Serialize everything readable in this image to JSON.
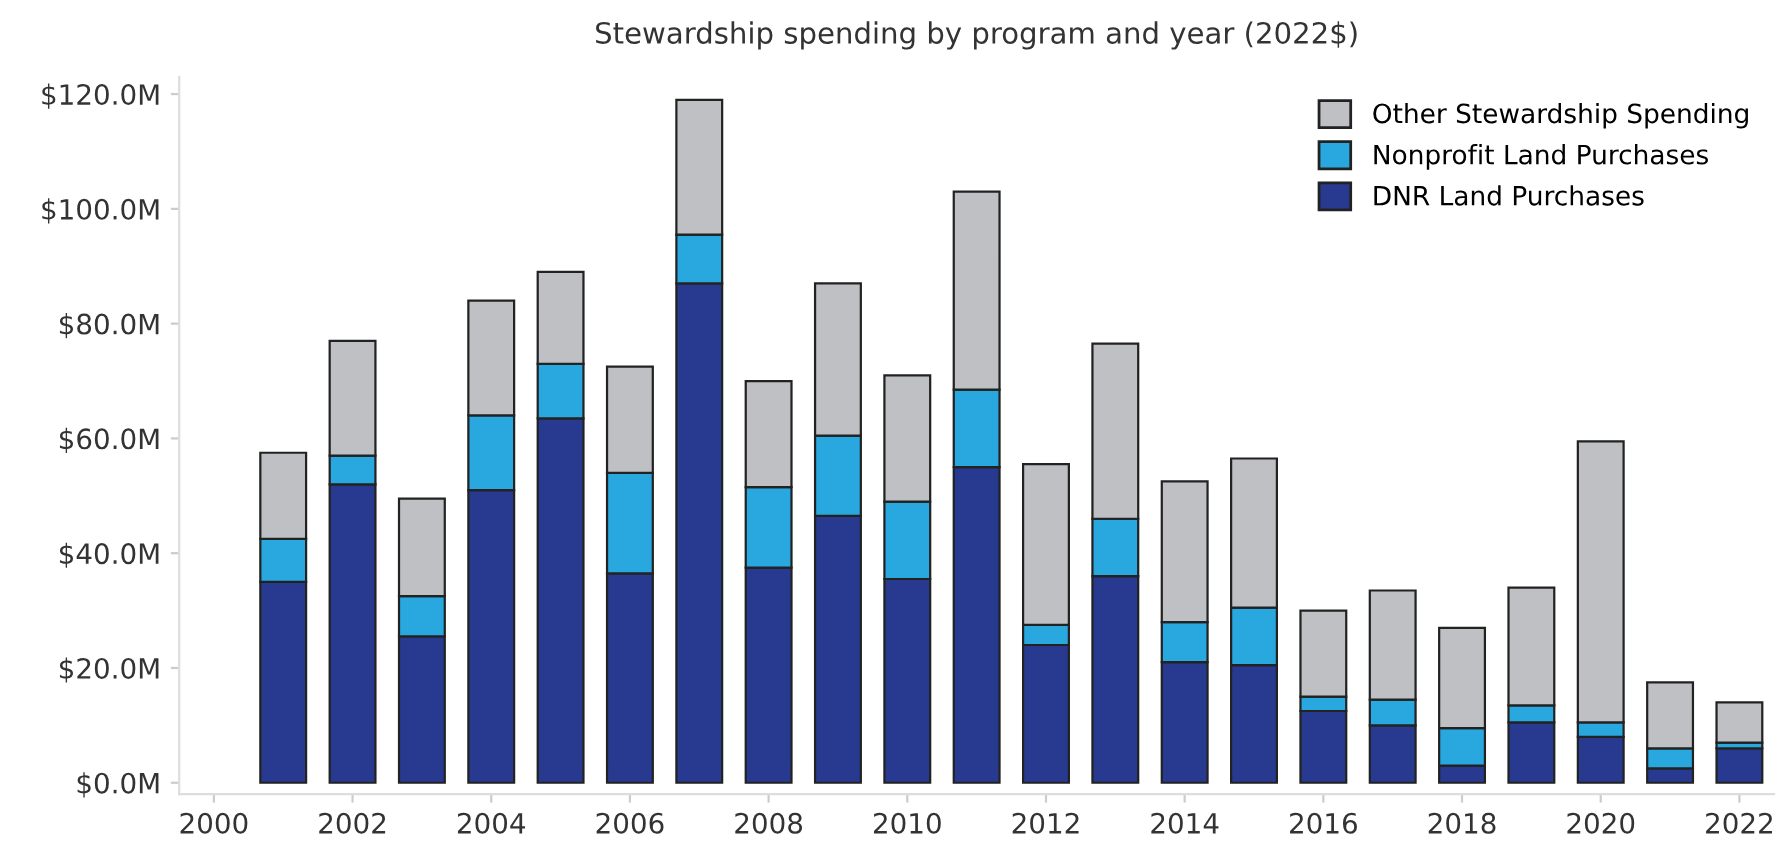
{
  "chart_data": {
    "type": "bar",
    "title": "Stewardship spending by program and year (2022$)",
    "stacked": true,
    "x": [
      2001,
      2002,
      2003,
      2004,
      2005,
      2006,
      2007,
      2008,
      2009,
      2010,
      2011,
      2012,
      2013,
      2014,
      2015,
      2016,
      2017,
      2018,
      2019,
      2020,
      2021,
      2022
    ],
    "series": [
      {
        "name": "DNR Land Purchases",
        "color": "#283a8f",
        "values": [
          35,
          52,
          25.5,
          51,
          63.5,
          36.5,
          87,
          37.5,
          46.5,
          35.5,
          55,
          24,
          36,
          21,
          20.5,
          12.5,
          10,
          3,
          10.5,
          8,
          2.5,
          6
        ]
      },
      {
        "name": "Nonprofit Land Purchases",
        "color": "#29a8e0",
        "values": [
          7.5,
          5,
          7,
          13,
          9.5,
          17.5,
          8.5,
          14,
          14,
          13.5,
          13.5,
          3.5,
          10,
          7,
          10,
          2.5,
          4.5,
          6.5,
          3,
          2.5,
          3.5,
          1
        ]
      },
      {
        "name": "Other Stewardship Spending",
        "color": "#bfc0c4",
        "values": [
          15,
          20,
          17,
          20,
          16,
          18.5,
          23.5,
          18.5,
          26.5,
          22,
          34.5,
          28,
          30.5,
          24.5,
          26,
          15,
          19,
          17.5,
          20.5,
          49,
          11.5,
          7
        ]
      }
    ],
    "xlim": [
      1999.5,
      2022.5
    ],
    "xticks": [
      2000,
      2002,
      2004,
      2006,
      2008,
      2010,
      2012,
      2014,
      2016,
      2018,
      2020,
      2022
    ],
    "ylim": [
      -2,
      123
    ],
    "yticks": [
      {
        "value": 0,
        "label": "$0.0M"
      },
      {
        "value": 20,
        "label": "$20.0M"
      },
      {
        "value": 40,
        "label": "$40.0M"
      },
      {
        "value": 60,
        "label": "$60.0M"
      },
      {
        "value": 80,
        "label": "$80.0M"
      },
      {
        "value": 100,
        "label": "$100.0M"
      },
      {
        "value": 120,
        "label": "$120.0M"
      }
    ],
    "grid": false,
    "legend": "top right"
  }
}
